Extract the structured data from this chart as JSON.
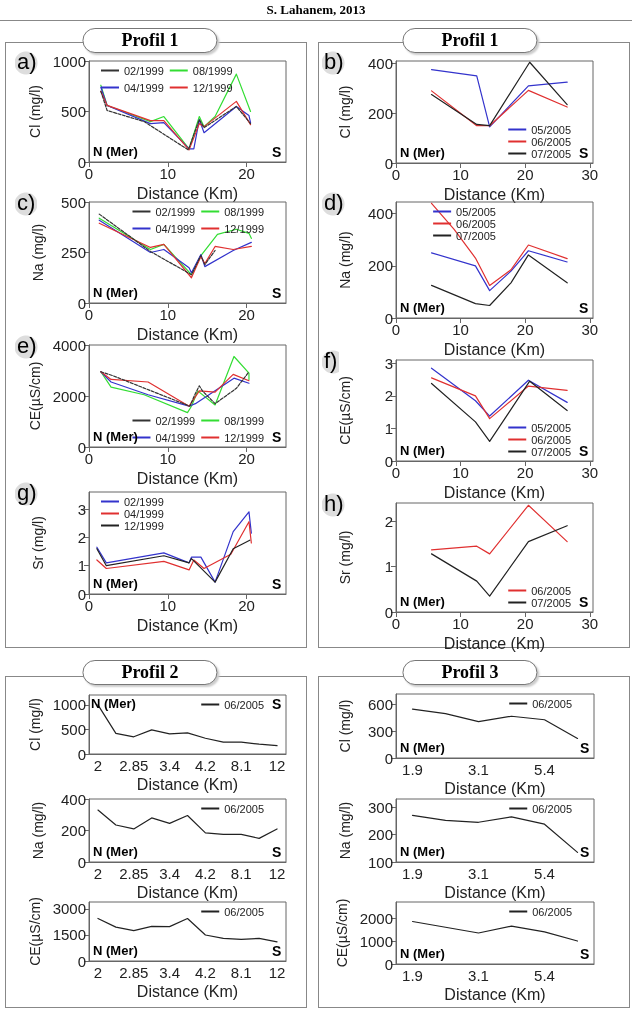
{
  "chart_data": [
    {
      "type": "line",
      "title": "Profil 1",
      "xlabel": "Distance (Km)",
      "ylabel": "Cl (mg/l)",
      "xlim": [
        0,
        25
      ],
      "xticks": [
        0,
        10,
        20
      ],
      "ylim": [
        0,
        1000
      ],
      "yticks": [
        0,
        500,
        1000
      ],
      "legend": "top left",
      "marker": "none",
      "annotations": [
        "S. Lahanem, 2013",
        "a)",
        "N (Mer)",
        "S"
      ],
      "series": [
        {
          "name": "02/1999",
          "color": "#333333",
          "line_style": "dashed",
          "x": [
            1.5,
            2.3,
            7,
            12.6,
            14,
            14.6,
            18.7,
            20.5
          ],
          "values": [
            700,
            510,
            400,
            120,
            420,
            340,
            550,
            380
          ]
        },
        {
          "name": "08/1999",
          "color": "#33dd33",
          "x": [
            1.5,
            2.3,
            7.8,
            9.5,
            12.7,
            14,
            14.6,
            16,
            18.7,
            20.5
          ],
          "values": [
            760,
            560,
            400,
            450,
            130,
            450,
            350,
            450,
            870,
            500
          ]
        },
        {
          "name": "04/1999",
          "color": "#3333cc",
          "x": [
            1.5,
            2.3,
            7.8,
            9.5,
            12.7,
            13.3,
            14,
            14.6,
            18.7,
            20.3,
            20.5
          ],
          "values": [
            740,
            560,
            380,
            390,
            130,
            130,
            420,
            290,
            550,
            460,
            390
          ]
        },
        {
          "name": "12/1999",
          "color": "#e03030",
          "x": [
            1.5,
            2.3,
            7.8,
            9.5,
            12.7,
            14,
            14.6,
            18.7,
            20.5
          ],
          "values": [
            700,
            560,
            410,
            410,
            120,
            380,
            350,
            600,
            370
          ]
        }
      ]
    },
    {
      "type": "line",
      "title": "Profil 1",
      "xlabel": "Distance (Km)",
      "ylabel": "Cl (mg/l)",
      "xlim": [
        0,
        30.5
      ],
      "xticks": [
        0,
        10,
        20,
        30
      ],
      "ylim": [
        0,
        410
      ],
      "yticks": [
        0,
        200,
        400
      ],
      "legend": "bottom right",
      "marker": "none",
      "annotations": [
        "b)",
        "N (Mer)",
        "S"
      ],
      "series": [
        {
          "name": "05/2005",
          "color": "#3333cc",
          "x": [
            5.5,
            12.5,
            14.5,
            20.5,
            26.5
          ],
          "values": [
            375,
            350,
            145,
            310,
            325
          ]
        },
        {
          "name": "06/2005",
          "color": "#e03030",
          "x": [
            5.5,
            12.5,
            14.5,
            20.5,
            26.5
          ],
          "values": [
            290,
            150,
            150,
            292,
            225
          ]
        },
        {
          "name": "07/2005",
          "color": "#222222",
          "x": [
            5.5,
            12.5,
            14.5,
            20.7,
            26.5
          ],
          "values": [
            275,
            155,
            150,
            405,
            235
          ]
        }
      ]
    },
    {
      "type": "line",
      "xlabel": "Distance (Km)",
      "ylabel": "Na (mg/l)",
      "xlim": [
        0,
        25
      ],
      "xticks": [
        0,
        10,
        20
      ],
      "ylim": [
        0,
        500
      ],
      "yticks": [
        0,
        250,
        500
      ],
      "legend": "top right",
      "marker": "none",
      "annotations": [
        "c)",
        "N (Mer)",
        "S"
      ],
      "series": [
        {
          "name": "02/1999",
          "color": "#333333",
          "line_style": "dashed",
          "x": [
            1.3,
            7.8,
            13,
            14.2,
            14.7,
            16
          ],
          "values": [
            440,
            255,
            140,
            235,
            190,
            260
          ]
        },
        {
          "name": "08/1999",
          "color": "#33dd33",
          "x": [
            1.3,
            7.8,
            9.5,
            13,
            14.2,
            16.3,
            18.7,
            20.3,
            20.6
          ],
          "values": [
            420,
            265,
            290,
            140,
            235,
            340,
            365,
            345,
            320
          ]
        },
        {
          "name": "04/1999",
          "color": "#3333cc",
          "x": [
            1.3,
            7.8,
            9.5,
            12.7,
            13,
            14.2,
            14.7,
            18.3,
            20.6
          ],
          "values": [
            410,
            250,
            265,
            175,
            150,
            240,
            180,
            260,
            300
          ]
        },
        {
          "name": "12/1999",
          "color": "#e03030",
          "x": [
            1.3,
            7.8,
            9.5,
            13,
            14.2,
            14.7,
            16,
            18.3,
            20.6
          ],
          "values": [
            395,
            275,
            290,
            125,
            230,
            195,
            280,
            265,
            280
          ]
        }
      ]
    },
    {
      "type": "line",
      "xlabel": "Distance (Km)",
      "ylabel": "Na (mg/l)",
      "xlim": [
        0,
        30.5
      ],
      "xticks": [
        0,
        10,
        20,
        30
      ],
      "ylim": [
        0,
        445
      ],
      "yticks": [
        0,
        200,
        400
      ],
      "legend": "top",
      "marker": "none",
      "annotations": [
        "d)",
        "N (Mer)",
        "S"
      ],
      "series": [
        {
          "name": "05/2005",
          "color": "#3333cc",
          "x": [
            5.5,
            12.3,
            14.5,
            17.8,
            20.5,
            26.5
          ],
          "values": [
            250,
            200,
            105,
            180,
            258,
            215
          ]
        },
        {
          "name": "06/2005",
          "color": "#e03030",
          "x": [
            5.5,
            9,
            12.3,
            14.5,
            17.8,
            20.5,
            26.5
          ],
          "values": [
            440,
            340,
            230,
            125,
            185,
            280,
            228
          ]
        },
        {
          "name": "07/2005",
          "color": "#222222",
          "x": [
            5.5,
            12.3,
            14.5,
            17.8,
            20.5,
            26.5
          ],
          "values": [
            125,
            55,
            48,
            135,
            242,
            135
          ]
        }
      ]
    },
    {
      "type": "line",
      "xlabel": "Distance (Km)",
      "ylabel": "CE(µS/cm)",
      "xlim": [
        0,
        25
      ],
      "xticks": [
        0,
        10,
        20
      ],
      "ylim": [
        0,
        4000
      ],
      "yticks": [
        0,
        2000,
        4000
      ],
      "legend": "bottom right",
      "marker": "none",
      "annotations": [
        "e)",
        "N (Mer)",
        "S"
      ],
      "series": [
        {
          "name": "02/1999",
          "color": "#333333",
          "line_style": "dashed",
          "x": [
            1.5,
            3,
            12.8,
            13.5,
            14,
            14.4,
            16,
            18.7,
            20.3
          ],
          "values": [
            2950,
            2800,
            1600,
            2100,
            2400,
            2200,
            1700,
            2300,
            2950
          ]
        },
        {
          "name": "08/1999",
          "color": "#33dd33",
          "x": [
            1.5,
            2.8,
            7,
            12.5,
            13,
            13.8,
            16,
            18.4,
            20.3,
            20.3
          ],
          "values": [
            2950,
            2350,
            2050,
            1350,
            1600,
            2200,
            1650,
            3550,
            2900,
            2650
          ]
        },
        {
          "name": "04/1999",
          "color": "#3333cc",
          "x": [
            1.5,
            2.8,
            7.5,
            12.7,
            13.5,
            18.4,
            20.3
          ],
          "values": [
            2950,
            2550,
            2050,
            1600,
            1700,
            2700,
            2500
          ]
        },
        {
          "name": "12/1999",
          "color": "#e03030",
          "x": [
            1.5,
            2.8,
            7.5,
            12.7,
            14,
            16,
            18.3,
            20.3
          ],
          "values": [
            2950,
            2650,
            2550,
            1600,
            2200,
            2150,
            2850,
            2600
          ]
        }
      ]
    },
    {
      "type": "line",
      "xlabel": "Distance (Km)",
      "ylabel": "CE(µS/cm)",
      "xlim": [
        0,
        30.5
      ],
      "xticks": [
        0,
        10,
        20,
        30
      ],
      "ylim": [
        0,
        3.1
      ],
      "yticks": [
        0,
        1,
        2,
        3
      ],
      "legend": "bottom right",
      "marker": "none",
      "annotations": [
        "f)",
        "N (Mer)",
        "S"
      ],
      "series": [
        {
          "name": "05/2005",
          "color": "#3333cc",
          "x": [
            5.5,
            12.3,
            14.5,
            20.5,
            26.5
          ],
          "values": [
            2.85,
            1.85,
            1.38,
            2.48,
            1.8
          ]
        },
        {
          "name": "06/2005",
          "color": "#e03030",
          "x": [
            5.5,
            12.3,
            14.5,
            20.5,
            26.5
          ],
          "values": [
            2.55,
            2.0,
            1.3,
            2.3,
            2.17
          ]
        },
        {
          "name": "07/2005",
          "color": "#222222",
          "x": [
            5.5,
            12.3,
            14.5,
            20.7,
            26.5
          ],
          "values": [
            2.38,
            1.2,
            0.6,
            2.45,
            1.55
          ]
        }
      ]
    },
    {
      "type": "line",
      "xlabel": "Distance (Km)",
      "ylabel": "Sr (mg/l)",
      "xlim": [
        0,
        25
      ],
      "xticks": [
        0,
        10,
        20
      ],
      "ylim": [
        0,
        3.6
      ],
      "yticks": [
        0,
        1,
        2,
        3
      ],
      "legend": "top left",
      "marker": "none",
      "annotations": [
        "g)",
        "N (Mer)",
        "S"
      ],
      "series": [
        {
          "name": "02/1999",
          "color": "#3333cc",
          "x": [
            1,
            2.2,
            9.5,
            12.7,
            13,
            14.2,
            16,
            18.3,
            20.3,
            20.6
          ],
          "values": [
            1.65,
            1.1,
            1.45,
            1.1,
            1.3,
            1.3,
            0.42,
            2.2,
            2.9,
            2.15
          ]
        },
        {
          "name": "04/1999",
          "color": "#e03030",
          "x": [
            1,
            2.2,
            9.5,
            12.7,
            13.3,
            14.6,
            18,
            20.3,
            20.6
          ],
          "values": [
            1.2,
            0.9,
            1.15,
            0.85,
            1.2,
            0.9,
            1.4,
            2.55,
            1.8
          ]
        },
        {
          "name": "12/1999",
          "color": "#222222",
          "x": [
            1,
            2.2,
            9.5,
            12.7,
            13,
            16,
            18.3,
            20.4
          ],
          "values": [
            1.6,
            1.0,
            1.35,
            1.1,
            1.25,
            0.42,
            1.6,
            1.9
          ]
        }
      ]
    },
    {
      "type": "line",
      "xlabel": "Distance (Km)",
      "ylabel": "Sr (mg/l)",
      "xlim": [
        0,
        30.5
      ],
      "xticks": [
        0,
        10,
        20,
        30
      ],
      "ylim": [
        0,
        2.4
      ],
      "yticks": [
        0,
        1,
        2
      ],
      "legend": "bottom right",
      "marker": "none",
      "annotations": [
        "h)",
        "N (Mer)",
        "S"
      ],
      "series": [
        {
          "name": "06/2005",
          "color": "#e03030",
          "x": [
            5.5,
            12.5,
            14.5,
            20.5,
            26.5
          ],
          "values": [
            1.37,
            1.45,
            1.28,
            2.35,
            1.55
          ]
        },
        {
          "name": "07/2005",
          "color": "#222222",
          "x": [
            5.5,
            12.5,
            14.5,
            20.5,
            26.5
          ],
          "values": [
            1.28,
            0.68,
            0.35,
            1.55,
            1.9
          ]
        }
      ]
    },
    {
      "type": "line",
      "title": "Profil 2",
      "xlabel": "Distance (Km)",
      "ylabel": "Cl (mg/l)",
      "categories": [
        "2",
        null,
        "2.85",
        null,
        "3.4",
        null,
        "4.2",
        null,
        "8.1",
        null,
        "12"
      ],
      "ylim": [
        0,
        1200
      ],
      "yticks": [
        0,
        500,
        1000
      ],
      "legend": "top right",
      "marker": "none",
      "annotations": [
        "N (Mer)",
        "S"
      ],
      "series": [
        {
          "name": "06/2005",
          "color": "#222222",
          "values": [
            1000,
            420,
            350,
            490,
            410,
            430,
            320,
            240,
            240,
            200,
            170
          ]
        }
      ]
    },
    {
      "type": "line",
      "title": "Profil 3",
      "xlabel": "Distance (Km)",
      "ylabel": "Cl (mg/l)",
      "categories": [
        "1.9",
        null,
        "3.1",
        null,
        "5.4",
        null
      ],
      "ylim": [
        0,
        720
      ],
      "yticks": [
        0,
        300,
        600
      ],
      "legend": "top right",
      "marker": "none",
      "annotations": [
        "N (Mer)",
        "S"
      ],
      "series": [
        {
          "name": "06/2005",
          "color": "#222222",
          "values": [
            550,
            500,
            410,
            470,
            430,
            220
          ]
        }
      ]
    },
    {
      "type": "line",
      "xlabel": "Distance (Km)",
      "ylabel": "Na (mg/l)",
      "categories": [
        "2",
        null,
        "2.85",
        null,
        "3.4",
        null,
        "4.2",
        null,
        "8.1",
        null,
        "12"
      ],
      "ylim": [
        0,
        400
      ],
      "yticks": [
        0,
        200,
        400
      ],
      "legend": "top right",
      "marker": "none",
      "annotations": [
        "N (Mer)",
        "S"
      ],
      "series": [
        {
          "name": "06/2005",
          "color": "#222222",
          "values": [
            330,
            235,
            210,
            280,
            245,
            295,
            185,
            175,
            175,
            150,
            210
          ]
        }
      ]
    },
    {
      "type": "line",
      "xlabel": "Distance (Km)",
      "ylabel": "Na (mg/l)",
      "categories": [
        "1.9",
        null,
        "3.1",
        null,
        "5.4",
        null
      ],
      "ylim": [
        100,
        330
      ],
      "yticks": [
        100,
        200,
        300
      ],
      "legend": "top right",
      "marker": "none",
      "annotations": [
        "N (Mer)",
        "S"
      ],
      "series": [
        {
          "name": "06/2005",
          "color": "#222222",
          "values": [
            270,
            252,
            245,
            265,
            238,
            135
          ]
        }
      ]
    },
    {
      "type": "line",
      "xlabel": "Distance (Km)",
      "ylabel": "CE(µS/cm)",
      "categories": [
        "2",
        null,
        "2.85",
        null,
        "3.4",
        null,
        "4.2",
        null,
        "8.1",
        null,
        "12"
      ],
      "ylim": [
        0,
        3400
      ],
      "yticks": [
        0,
        1500,
        3000
      ],
      "legend": "top right",
      "marker": "none",
      "annotations": [
        "N (Mer)",
        "S"
      ],
      "series": [
        {
          "name": "06/2005",
          "color": "#222222",
          "values": [
            2450,
            1950,
            1750,
            2000,
            1980,
            2450,
            1500,
            1300,
            1250,
            1300,
            1100
          ]
        }
      ]
    },
    {
      "type": "line",
      "xlabel": "Distance (Km)",
      "ylabel": "CE(µS/cm)",
      "categories": [
        "1.9",
        null,
        "3.1",
        null,
        "5.4",
        null
      ],
      "ylim": [
        0,
        2700
      ],
      "yticks": [
        0,
        1000,
        2000
      ],
      "legend": "top right",
      "marker": "none",
      "annotations": [
        "N (Mer)",
        "S"
      ],
      "series": [
        {
          "name": "06/2005",
          "color": "#222222",
          "values": [
            1850,
            1600,
            1350,
            1650,
            1400,
            1000
          ]
        }
      ]
    }
  ]
}
